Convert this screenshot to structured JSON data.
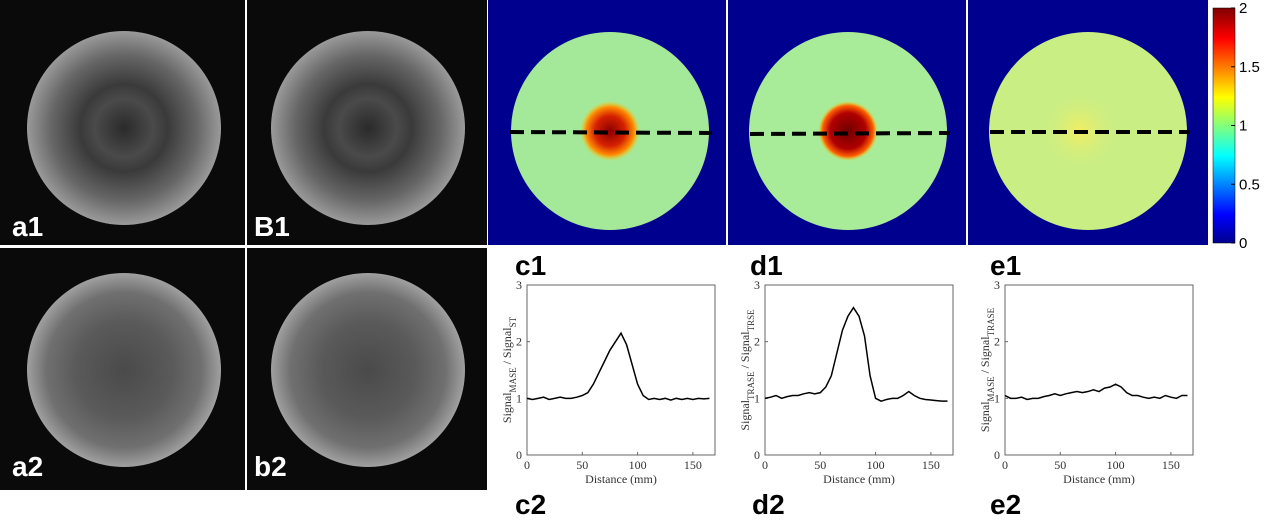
{
  "panel_labels": [
    "a1",
    "B1",
    "a2",
    "b2",
    "c1",
    "d1",
    "e1",
    "c2",
    "d2",
    "e2"
  ],
  "colorbar": {
    "ylim": [
      0,
      2
    ],
    "yticks": [
      0,
      0.5,
      1,
      1.5,
      2
    ]
  },
  "chart_data": [
    {
      "type": "line",
      "x_label": "Distance (mm)",
      "y_label": [
        "Signal",
        "MASE",
        " / Signal",
        "ST"
      ],
      "x": [
        0,
        5,
        10,
        15,
        20,
        25,
        30,
        35,
        40,
        45,
        50,
        55,
        60,
        65,
        70,
        75,
        80,
        85,
        90,
        95,
        100,
        105,
        110,
        115,
        120,
        125,
        130,
        135,
        140,
        145,
        150,
        155,
        160,
        165
      ],
      "series": [
        {
          "color": "#000000",
          "values": [
            1.0,
            0.98,
            1.0,
            1.02,
            0.98,
            1.0,
            1.02,
            1.0,
            1.0,
            1.02,
            1.05,
            1.1,
            1.25,
            1.45,
            1.65,
            1.85,
            2.0,
            2.15,
            1.95,
            1.6,
            1.25,
            1.05,
            0.98,
            1.0,
            0.98,
            1.0,
            0.97,
            1.0,
            0.98,
            1.0,
            0.98,
            1.0,
            0.99,
            1.0
          ]
        }
      ],
      "xlim": [
        0,
        170
      ],
      "ylim": [
        0,
        3
      ],
      "xticks": [
        0,
        50,
        100,
        150
      ],
      "yticks": [
        0,
        1,
        2,
        3
      ]
    },
    {
      "type": "line",
      "x_label": "Distance (mm)",
      "y_label": [
        "Signal",
        "TRASE",
        " / Signal",
        "TRSE"
      ],
      "x": [
        0,
        5,
        10,
        15,
        20,
        25,
        30,
        35,
        40,
        45,
        50,
        55,
        60,
        65,
        70,
        75,
        80,
        85,
        90,
        95,
        100,
        105,
        110,
        115,
        120,
        125,
        130,
        135,
        140,
        145,
        150,
        155,
        160,
        165
      ],
      "series": [
        {
          "color": "#000000",
          "values": [
            1.0,
            1.02,
            1.05,
            1.0,
            1.03,
            1.05,
            1.05,
            1.08,
            1.1,
            1.08,
            1.1,
            1.2,
            1.4,
            1.8,
            2.2,
            2.45,
            2.6,
            2.45,
            2.1,
            1.4,
            1.0,
            0.95,
            0.98,
            1.0,
            1.0,
            1.05,
            1.12,
            1.05,
            1.0,
            0.98,
            0.97,
            0.96,
            0.95,
            0.95
          ]
        }
      ],
      "xlim": [
        0,
        170
      ],
      "ylim": [
        0,
        3
      ],
      "xticks": [
        0,
        50,
        100,
        150
      ],
      "yticks": [
        0,
        1,
        2,
        3
      ]
    },
    {
      "type": "line",
      "x_label": "Distance (mm)",
      "y_label": [
        "Signal",
        "MASE",
        " / Signal",
        "TRASE"
      ],
      "x": [
        0,
        5,
        10,
        15,
        20,
        25,
        30,
        35,
        40,
        45,
        50,
        55,
        60,
        65,
        70,
        75,
        80,
        85,
        90,
        95,
        100,
        105,
        110,
        115,
        120,
        125,
        130,
        135,
        140,
        145,
        150,
        155,
        160,
        165
      ],
      "series": [
        {
          "color": "#000000",
          "values": [
            1.05,
            1.0,
            1.0,
            1.02,
            0.98,
            1.0,
            1.0,
            1.03,
            1.05,
            1.08,
            1.05,
            1.08,
            1.1,
            1.12,
            1.1,
            1.12,
            1.15,
            1.12,
            1.18,
            1.2,
            1.25,
            1.2,
            1.1,
            1.05,
            1.05,
            1.02,
            1.0,
            1.02,
            1.0,
            1.05,
            1.02,
            1.0,
            1.05,
            1.05
          ]
        }
      ],
      "xlim": [
        0,
        170
      ],
      "ylim": [
        0,
        3
      ],
      "xticks": [
        0,
        50,
        100,
        150
      ],
      "yticks": [
        0,
        1,
        2,
        3
      ]
    }
  ]
}
